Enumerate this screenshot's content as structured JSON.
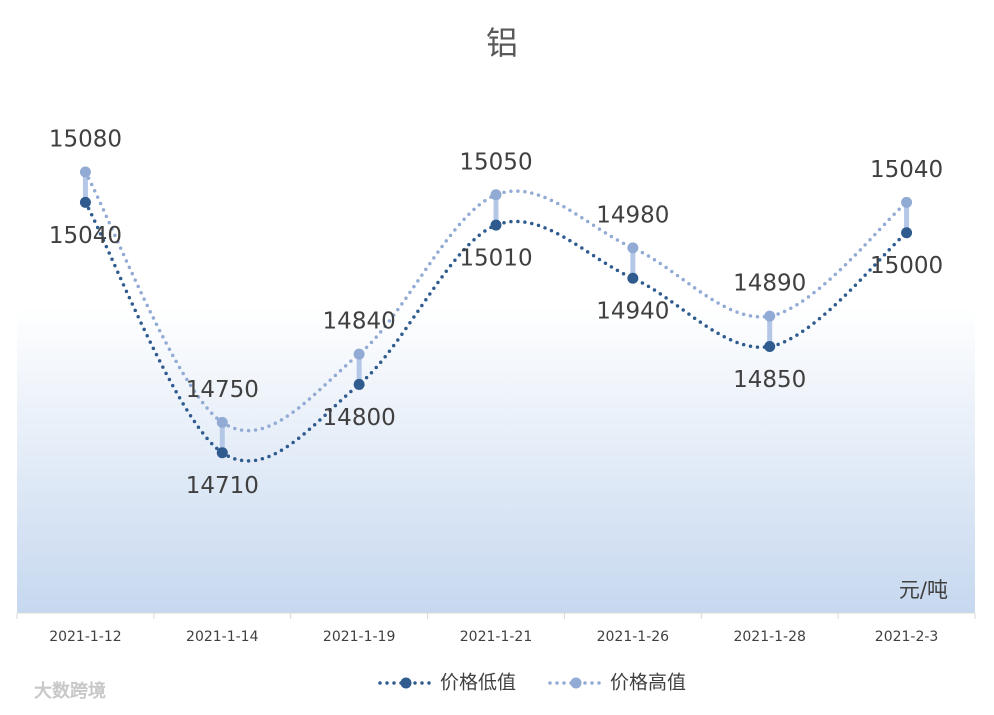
{
  "chart_data": {
    "type": "line",
    "title": "铝",
    "categories": [
      "2021-1-12",
      "2021-1-14",
      "2021-1-19",
      "2021-1-21",
      "2021-1-26",
      "2021-1-28",
      "2021-2-3"
    ],
    "series": [
      {
        "name": "价格低值",
        "color": "#2f5b8f",
        "values": [
          15040,
          14710,
          14800,
          15010,
          14940,
          14850,
          15000
        ]
      },
      {
        "name": "价格高值",
        "color": "#92abd4",
        "values": [
          15080,
          14750,
          14840,
          15050,
          14980,
          14890,
          15040
        ]
      }
    ],
    "ylim": [
      14500,
      15200
    ],
    "unit_label": "元/吨",
    "legend": "bottom",
    "smooth": true,
    "watermark": "大数跨境"
  }
}
